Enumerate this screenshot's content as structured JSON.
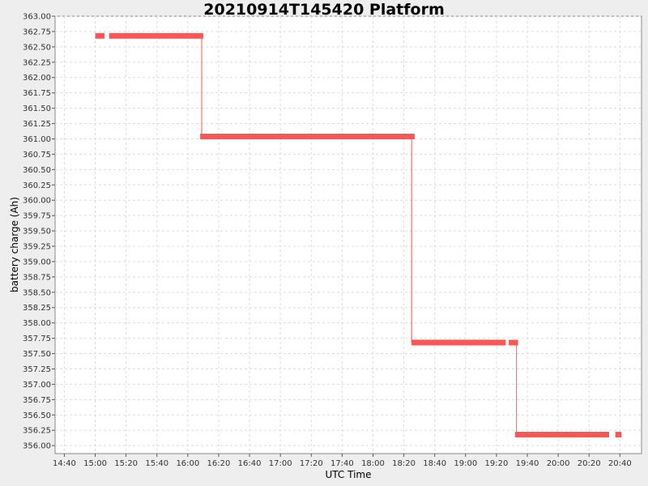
{
  "chart_data": {
    "type": "line",
    "title": "20210914T145420 Platform",
    "xlabel": "UTC Time",
    "ylabel": "battery charge (Ah)",
    "xlim": [
      "14:34",
      "20:54"
    ],
    "ylim": [
      355.87,
      363.0
    ],
    "x_ticks": [
      "14:40",
      "15:00",
      "15:20",
      "15:40",
      "16:00",
      "16:20",
      "16:40",
      "17:00",
      "17:20",
      "17:40",
      "18:00",
      "18:20",
      "18:40",
      "19:00",
      "19:20",
      "19:40",
      "20:00",
      "20:20",
      "20:40"
    ],
    "y_ticks": [
      "356.00",
      "356.25",
      "356.50",
      "356.75",
      "357.00",
      "357.25",
      "357.50",
      "357.75",
      "358.00",
      "358.25",
      "358.50",
      "358.75",
      "359.00",
      "359.25",
      "359.50",
      "359.75",
      "360.00",
      "360.25",
      "360.50",
      "360.75",
      "361.00",
      "361.25",
      "361.50",
      "361.75",
      "362.00",
      "362.25",
      "362.50",
      "362.75",
      "363.00"
    ],
    "grid": true,
    "line_color": "#ff5555",
    "series": [
      {
        "segments": [
          {
            "x_start": "15:00",
            "x_end": "15:06",
            "y": 362.68
          },
          {
            "x_start": "15:09",
            "x_end": "16:10",
            "y": 362.68
          },
          {
            "x_start": "16:08",
            "x_end": "18:27",
            "y": 361.04
          },
          {
            "x_start": "18:25",
            "x_end": "19:26",
            "y": 357.68
          },
          {
            "x_start": "19:28",
            "x_end": "19:34",
            "y": 357.68
          },
          {
            "x_start": "19:32",
            "x_end": "20:33",
            "y": 356.18
          },
          {
            "x_start": "20:37",
            "x_end": "20:41",
            "y": 356.18
          }
        ],
        "drops": [
          {
            "x": "16:09",
            "y_from": 362.68,
            "y_to": 361.04
          },
          {
            "x": "18:25",
            "y_from": 361.04,
            "y_to": 357.68
          },
          {
            "x": "19:33",
            "y_from": 357.68,
            "y_to": 356.18
          }
        ]
      }
    ]
  }
}
